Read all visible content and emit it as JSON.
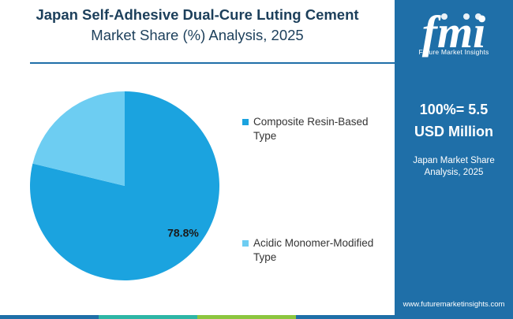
{
  "title": {
    "line1": "Japan Self-Adhesive Dual-Cure Luting Cement",
    "line2": "Market Share (%) Analysis, 2025"
  },
  "chart_data": {
    "type": "pie",
    "slices": [
      {
        "label": "Composite Resin-Based Type",
        "value": 78.8,
        "color": "#1ba3df"
      },
      {
        "label": "Acidic Monomer-Modified Type",
        "value": 21.2,
        "color": "#6dcdf2"
      }
    ],
    "data_labels": [
      "78.8%"
    ]
  },
  "legend": [
    {
      "label": "Composite Resin-Based Type",
      "color": "#1ba3df"
    },
    {
      "label": "Acidic Monomer-Modified Type",
      "color": "#6dcdf2"
    }
  ],
  "panel": {
    "logo_text": "fmi",
    "logo_subtitle": "Future Market Insights",
    "total_line1": "100%= 5.5",
    "total_line2": "USD Million",
    "sub_line1": "Japan Market Share",
    "sub_line2": "Analysis, 2025",
    "url": "www.futuremarketinsights.com"
  },
  "colors": {
    "accent": "#1f6fa8",
    "title": "#1c3f5b",
    "bar": [
      "#1f6fa8",
      "#2eb6a6",
      "#8cc63f",
      "#1f6fa8"
    ]
  }
}
